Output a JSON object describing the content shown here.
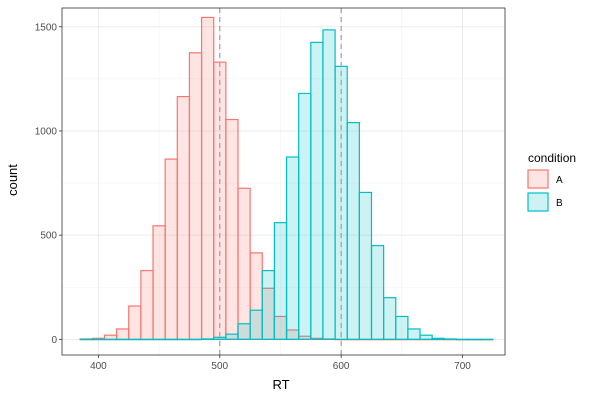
{
  "chart_data": {
    "type": "bar",
    "subtype": "overlapping-histogram",
    "xlabel": "RT",
    "ylabel": "count",
    "xlim": [
      370,
      735
    ],
    "ylim": [
      -75,
      1590
    ],
    "x_ticks": [
      400,
      500,
      600,
      700
    ],
    "y_ticks": [
      0,
      500,
      1000,
      1500
    ],
    "bin_width": 10,
    "grid": true,
    "legend": {
      "title": "condition",
      "position": "right"
    },
    "vlines": [
      {
        "x": 500,
        "color": "#a0a0a0",
        "style": "dashed"
      },
      {
        "x": 600,
        "color": "#a0a0a0",
        "style": "dashed"
      }
    ],
    "series": [
      {
        "name": "A",
        "stroke": "#F8766D",
        "fill": "#F8766D",
        "fill_opacity": 0.2,
        "x": [
          390,
          400,
          410,
          420,
          430,
          440,
          450,
          460,
          470,
          480,
          490,
          500,
          510,
          520,
          530,
          540,
          550,
          560,
          570,
          580,
          590,
          600,
          610,
          620,
          630,
          640,
          650,
          660,
          670,
          680,
          690,
          700,
          710,
          720
        ],
        "values": [
          2,
          5,
          20,
          50,
          160,
          330,
          545,
          865,
          1165,
          1375,
          1545,
          1330,
          1055,
          725,
          415,
          245,
          110,
          45,
          15,
          5,
          2,
          0,
          0,
          0,
          0,
          0,
          0,
          0,
          0,
          0,
          0,
          0,
          0,
          0
        ]
      },
      {
        "name": "B",
        "stroke": "#00BFC4",
        "fill": "#00BFC4",
        "fill_opacity": 0.2,
        "x": [
          390,
          400,
          410,
          420,
          430,
          440,
          450,
          460,
          470,
          480,
          490,
          500,
          510,
          520,
          530,
          540,
          550,
          560,
          570,
          580,
          590,
          600,
          610,
          620,
          630,
          640,
          650,
          660,
          670,
          680,
          690,
          700,
          710,
          720
        ],
        "values": [
          0,
          0,
          0,
          0,
          0,
          0,
          0,
          0,
          0,
          0,
          2,
          10,
          25,
          75,
          140,
          330,
          560,
          875,
          1180,
          1425,
          1485,
          1310,
          1040,
          705,
          450,
          200,
          110,
          50,
          20,
          5,
          2,
          0,
          0,
          0
        ]
      }
    ]
  }
}
